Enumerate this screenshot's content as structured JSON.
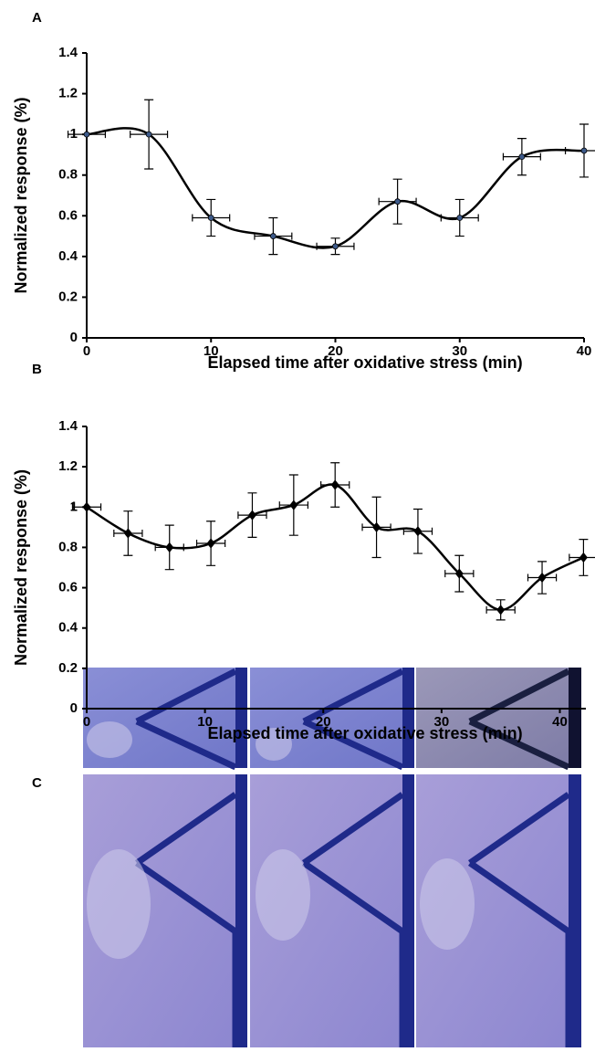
{
  "chart_data": [
    {
      "type": "line",
      "label": "A",
      "x_label": "Elapsed time after oxidative stress (min)",
      "y_label": "Normalized response (%)",
      "x": [
        0,
        5,
        10,
        15,
        20,
        25,
        30,
        35,
        40
      ],
      "series": [
        {
          "color": "#000000",
          "marker_color": "#3d5a8a",
          "marker": "circle",
          "values": [
            1,
            1,
            0.59,
            0.5,
            0.45,
            0.67,
            0.59,
            0.89,
            0.92
          ],
          "errors": [
            0,
            0.17,
            0.09,
            0.09,
            0.04,
            0.11,
            0.09,
            0.09,
            0.13
          ],
          "x_errors": [
            1.5,
            1.5,
            1.5,
            1.5,
            1.5,
            1.5,
            1.5,
            1.5,
            1.5
          ]
        }
      ],
      "xlim": [
        0,
        40
      ],
      "xticks": [
        0,
        10,
        20,
        30,
        40
      ],
      "ylim": [
        0,
        1.4
      ],
      "yticks": [
        0,
        0.2,
        0.4,
        0.6,
        0.8,
        1,
        1.2,
        1.4
      ],
      "smooth": true
    },
    {
      "type": "line",
      "label": "B",
      "x_label": "Elapsed time after oxidative stress (min)",
      "y_label": "Normalized response (%)",
      "x": [
        0,
        3.5,
        7,
        10.5,
        14,
        17.5,
        21,
        24.5,
        28,
        31.5,
        35,
        38.5,
        42
      ],
      "series": [
        {
          "color": "#000000",
          "marker_color": "#000000",
          "marker": "diamond",
          "values": [
            1,
            0.87,
            0.8,
            0.82,
            0.96,
            1.01,
            1.11,
            0.9,
            0.88,
            0.67,
            0.49,
            0.65,
            0.75
          ],
          "errors": [
            0,
            0.11,
            0.11,
            0.11,
            0.11,
            0.15,
            0.11,
            0.15,
            0.11,
            0.09,
            0.05,
            0.08,
            0.09
          ],
          "x_errors": [
            1.2,
            1.2,
            1.2,
            1.2,
            1.2,
            1.2,
            1.2,
            1.2,
            1.2,
            1.2,
            1.2,
            1.2,
            1.2
          ]
        }
      ],
      "xlim": [
        0,
        42.2
      ],
      "xticks": [
        0,
        10,
        20,
        30,
        40
      ],
      "ylim": [
        0,
        1.4
      ],
      "yticks": [
        0,
        0.2,
        0.4,
        0.6,
        0.8,
        1,
        1.2,
        1.4
      ],
      "smooth": true
    }
  ],
  "image_panel": {
    "label": "C"
  }
}
